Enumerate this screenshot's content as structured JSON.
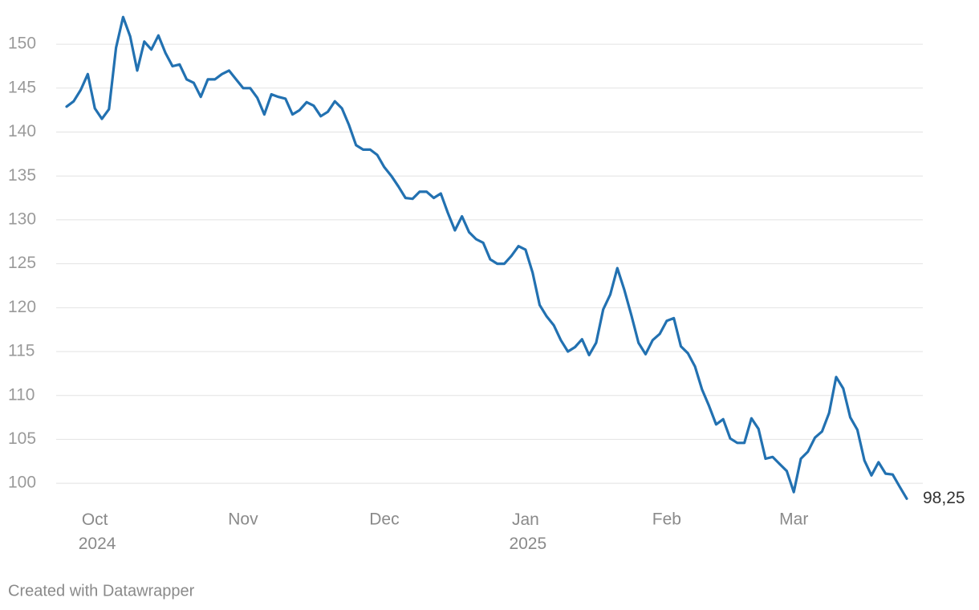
{
  "chart_data": {
    "type": "line",
    "credit": "Created with Datawrapper",
    "categories": [
      null,
      null,
      null,
      null,
      "Oct 2024",
      null,
      null,
      null,
      null,
      null,
      null,
      null,
      null,
      null,
      null,
      null,
      null,
      null,
      null,
      null,
      null,
      null,
      null,
      null,
      null,
      "Nov",
      null,
      null,
      null,
      null,
      null,
      null,
      null,
      null,
      null,
      null,
      null,
      null,
      null,
      null,
      null,
      null,
      null,
      null,
      null,
      "Dec",
      null,
      null,
      null,
      null,
      null,
      null,
      null,
      null,
      null,
      null,
      null,
      null,
      null,
      null,
      null,
      null,
      null,
      null,
      null,
      "Jan 2025",
      null,
      null,
      null,
      null,
      null,
      null,
      null,
      null,
      null,
      null,
      null,
      null,
      null,
      null,
      null,
      null,
      null,
      null,
      null,
      "Feb",
      null,
      null,
      null,
      null,
      null,
      null,
      null,
      null,
      null,
      null,
      null,
      null,
      null,
      null,
      null,
      null,
      null,
      "Mar",
      null,
      null,
      null,
      null,
      null,
      null,
      null,
      null,
      null,
      null,
      null,
      null,
      null,
      null,
      null,
      null
    ],
    "series": [
      {
        "color": "#2271b1",
        "values": [
          142.9,
          143.5,
          144.8,
          146.6,
          142.7,
          141.5,
          142.6,
          149.6,
          153.1,
          150.9,
          147.0,
          150.3,
          149.4,
          151.0,
          149.0,
          147.5,
          147.7,
          146.0,
          145.6,
          144.0,
          146.0,
          146.0,
          146.6,
          147.0,
          146.0,
          145.0,
          145.0,
          143.9,
          142.0,
          144.3,
          144.0,
          143.8,
          142.0,
          142.5,
          143.4,
          143.0,
          141.8,
          142.3,
          143.5,
          142.7,
          140.8,
          138.5,
          138.0,
          138.0,
          137.4,
          136.0,
          135.0,
          133.8,
          132.5,
          132.4,
          133.2,
          133.2,
          132.5,
          133.0,
          130.8,
          128.8,
          130.4,
          128.6,
          127.8,
          127.4,
          125.5,
          125.0,
          125.0,
          125.9,
          127.0,
          126.6,
          124.0,
          120.3,
          119.0,
          118.0,
          116.3,
          115.0,
          115.5,
          116.4,
          114.6,
          116.0,
          119.8,
          121.5,
          124.5,
          122.0,
          119.1,
          116.0,
          114.7,
          116.3,
          117.0,
          118.5,
          118.8,
          115.6,
          114.8,
          113.3,
          110.7,
          108.8,
          106.7,
          107.3,
          105.1,
          104.6,
          104.6,
          107.4,
          106.2,
          102.8,
          103.0,
          102.2,
          101.4,
          99.0,
          102.8,
          103.6,
          105.2,
          105.9,
          108.0,
          112.1,
          110.8,
          107.5,
          106.1,
          102.6,
          100.9,
          102.4,
          101.1,
          101.0,
          99.6,
          98.25
        ],
        "value_labels": [
          null,
          null,
          null,
          null,
          null,
          null,
          null,
          null,
          null,
          null,
          null,
          null,
          null,
          null,
          null,
          null,
          null,
          null,
          null,
          null,
          null,
          null,
          null,
          null,
          null,
          null,
          null,
          null,
          null,
          null,
          null,
          null,
          null,
          null,
          null,
          null,
          null,
          null,
          null,
          null,
          null,
          null,
          null,
          null,
          null,
          null,
          null,
          null,
          null,
          null,
          null,
          null,
          null,
          null,
          null,
          null,
          null,
          null,
          null,
          null,
          null,
          null,
          null,
          null,
          null,
          null,
          null,
          null,
          null,
          null,
          null,
          null,
          null,
          null,
          null,
          null,
          null,
          null,
          null,
          null,
          null,
          null,
          null,
          null,
          null,
          null,
          null,
          null,
          null,
          null,
          null,
          null,
          null,
          null,
          null,
          null,
          null,
          null,
          null,
          null,
          null,
          null,
          null,
          null,
          null,
          null,
          null,
          null,
          null,
          null,
          null,
          null,
          null,
          null,
          null,
          null,
          null,
          null,
          null,
          "98,25"
        ]
      }
    ],
    "ylim": [
      98,
      153.3
    ],
    "yticks": [
      100,
      105,
      110,
      115,
      120,
      125,
      130,
      135,
      140,
      145,
      150
    ],
    "grid": true
  }
}
